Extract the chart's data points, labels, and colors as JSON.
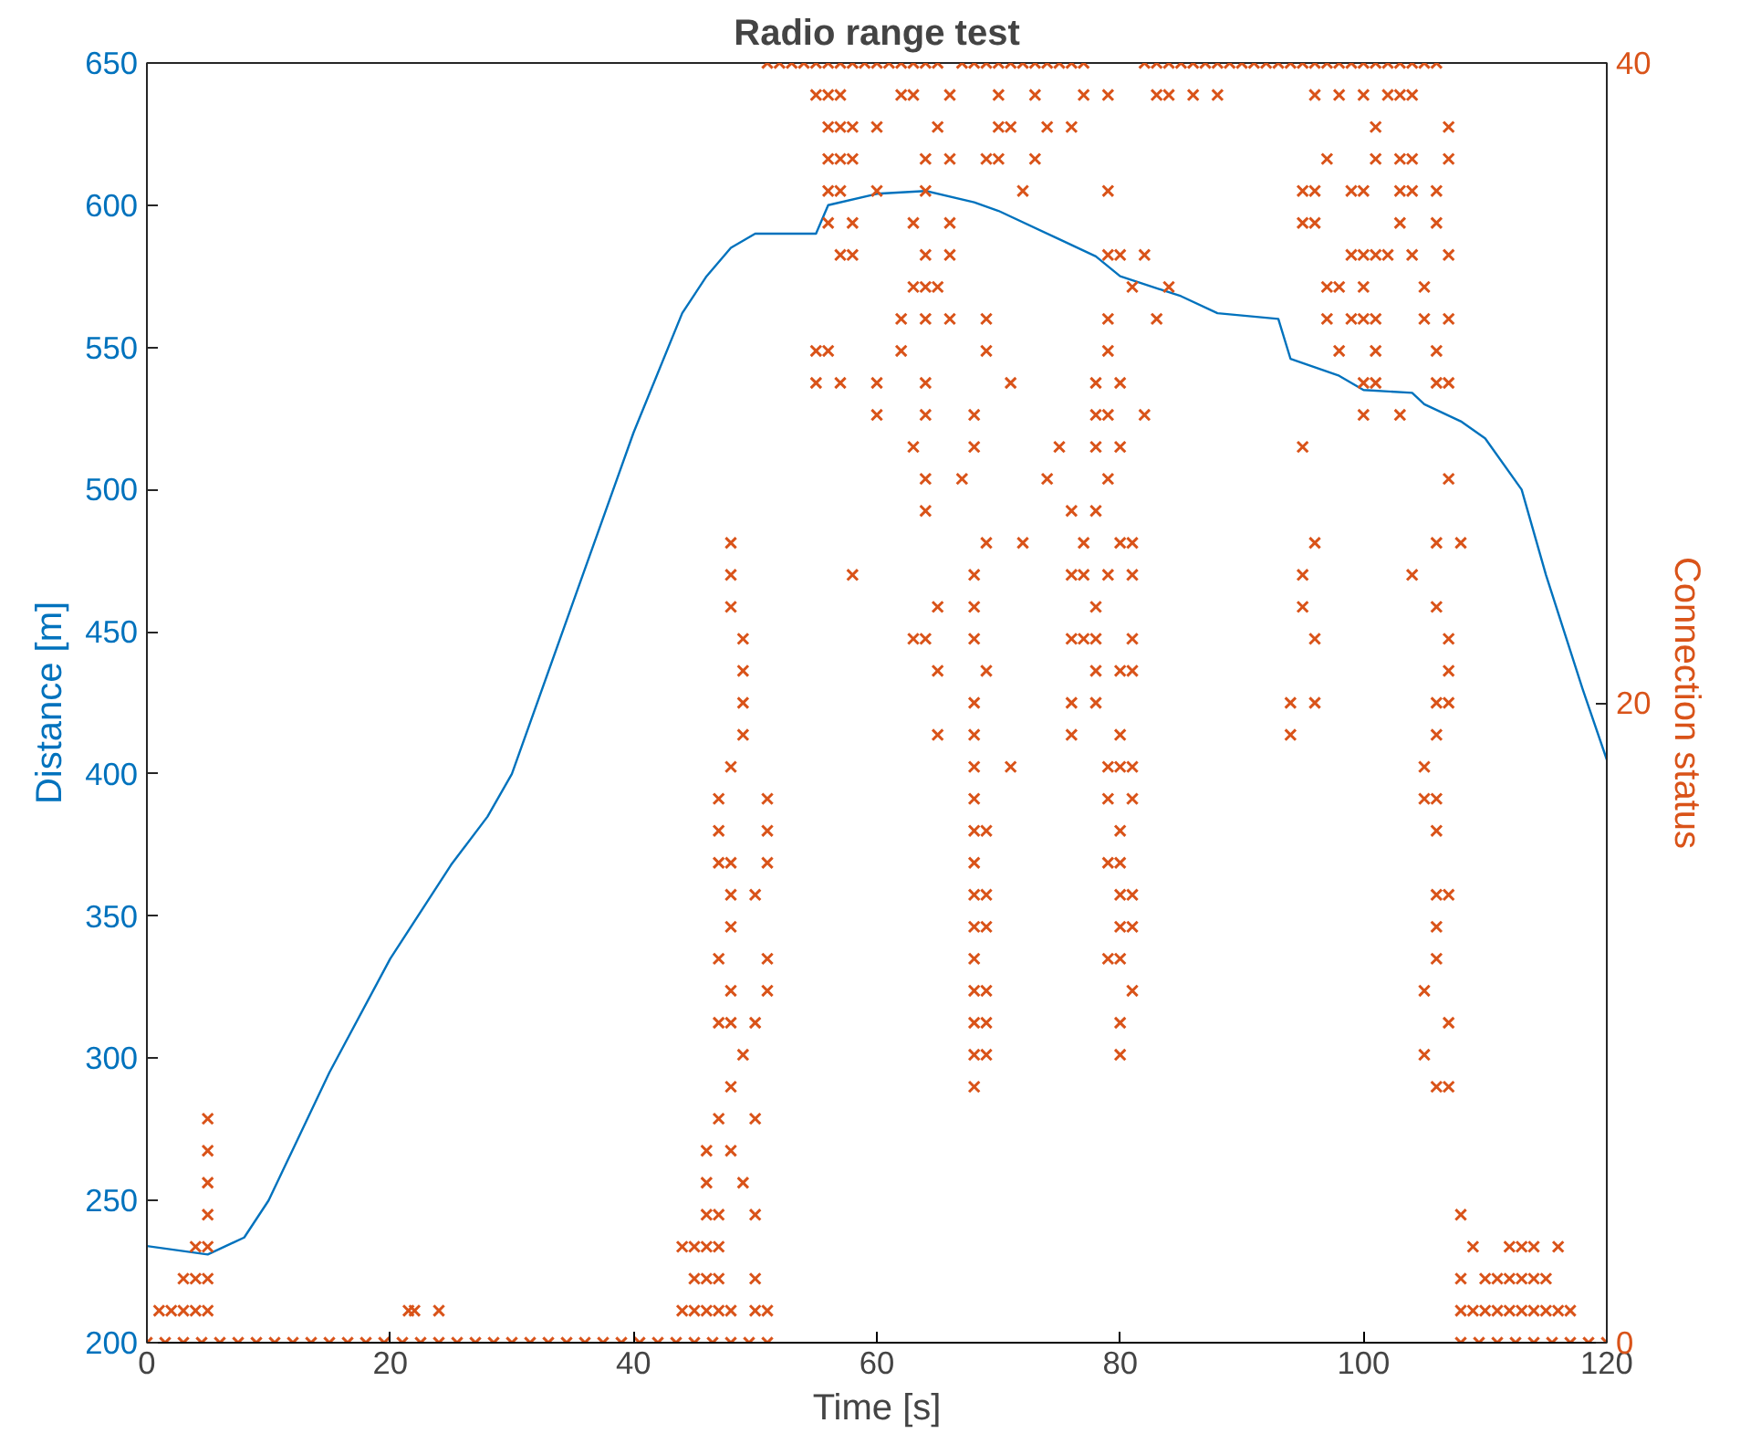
{
  "chart_data": {
    "type": "line",
    "title": "Radio range test",
    "xlabel": "Time [s]",
    "ylabel": "Distance [m]",
    "y2label": "Connection status",
    "xlim": [
      0,
      120
    ],
    "xticks": [
      0,
      20,
      40,
      60,
      80,
      100,
      120
    ],
    "ylim": [
      200,
      650
    ],
    "yticks": [
      200,
      250,
      300,
      350,
      400,
      450,
      500,
      550,
      600,
      650
    ],
    "y2lim": [
      0,
      40
    ],
    "y2ticks": [
      0,
      20,
      40
    ],
    "grid": false,
    "series": [
      {
        "color": "#0072bd",
        "line_style": "solid",
        "x": [
          0,
          5,
          8,
          10,
          12,
          15,
          20,
          25,
          28,
          30,
          35,
          40,
          44,
          46,
          48,
          50,
          55,
          56,
          60,
          64,
          68,
          70,
          75,
          78,
          80,
          85,
          88,
          93,
          94,
          98,
          100,
          104,
          105,
          108,
          110,
          113,
          115,
          118,
          120
        ],
        "values": [
          234,
          231,
          237,
          250,
          268,
          295,
          335,
          368,
          385,
          400,
          460,
          520,
          562,
          575,
          585,
          590,
          590,
          600,
          604,
          605,
          601,
          598,
          588,
          582,
          575,
          568,
          562,
          560,
          546,
          540,
          535,
          534,
          530,
          524,
          518,
          500,
          470,
          430,
          405
        ]
      },
      {
        "type": "scatter",
        "axis": "y2",
        "marker": "cross",
        "color": "#d95319",
        "x": [
          0,
          1.5,
          3,
          4.5,
          6,
          7.5,
          9,
          10.5,
          12,
          13.5,
          15,
          16.5,
          18,
          19.5,
          21,
          22.5,
          24,
          25.5,
          27,
          28.5,
          30,
          31.5,
          33,
          34.5,
          36,
          37.5,
          39,
          40.5,
          42,
          43.5,
          45,
          46.5,
          48,
          49.5,
          51,
          108,
          109.5,
          111,
          112.5,
          114,
          115.5,
          117,
          118.5,
          120
        ],
        "values": [
          0,
          0,
          0,
          0,
          0,
          0,
          0,
          0,
          0,
          0,
          0,
          0,
          0,
          0,
          0,
          0,
          0,
          0,
          0,
          0,
          0,
          0,
          0,
          0,
          0,
          0,
          0,
          0,
          0,
          0,
          0,
          0,
          0,
          0,
          0,
          0,
          0,
          0,
          0,
          0,
          0,
          0,
          0,
          0
        ]
      },
      {
        "type": "scatter",
        "axis": "y2",
        "marker": "cross",
        "color": "#d95319",
        "x": [
          1,
          2,
          3,
          4,
          5,
          21.5,
          22,
          24,
          44,
          45,
          46,
          47,
          48,
          50,
          51,
          108,
          109,
          110,
          111,
          112,
          113,
          114,
          115,
          116,
          117
        ],
        "values": [
          1,
          1,
          1,
          1,
          1,
          1,
          1,
          1,
          1,
          1,
          1,
          1,
          1,
          1,
          1,
          1,
          1,
          1,
          1,
          1,
          1,
          1,
          1,
          1,
          1
        ]
      },
      {
        "type": "scatter",
        "axis": "y2",
        "marker": "cross",
        "color": "#d95319",
        "x": [
          3,
          4,
          5,
          45,
          46,
          47,
          50,
          108,
          110,
          111,
          112,
          113,
          114,
          115
        ],
        "values": [
          2,
          2,
          2,
          2,
          2,
          2,
          2,
          2,
          2,
          2,
          2,
          2,
          2,
          2
        ]
      },
      {
        "type": "scatter",
        "axis": "y2",
        "marker": "cross",
        "color": "#d95319",
        "x": [
          4,
          5,
          44,
          45,
          46,
          47,
          109,
          112,
          113,
          114,
          116
        ],
        "values": [
          3,
          3,
          3,
          3,
          3,
          3,
          3,
          3,
          3,
          3,
          3
        ]
      },
      {
        "type": "scatter",
        "axis": "y2",
        "marker": "cross",
        "color": "#d95319",
        "x": [
          5,
          46,
          47,
          50,
          108,
          5,
          46,
          49,
          5,
          46,
          48,
          5,
          47,
          50
        ],
        "values": [
          4,
          4,
          4,
          4,
          4,
          5,
          5,
          5,
          6,
          6,
          6,
          7,
          7,
          7
        ]
      },
      {
        "type": "scatter",
        "axis": "y2",
        "marker": "cross",
        "color": "#d95319",
        "x": [
          48,
          68,
          106,
          107,
          49,
          68,
          69,
          80,
          105,
          47,
          48,
          50,
          68,
          69,
          80,
          107
        ],
        "values": [
          8,
          8,
          8,
          8,
          9,
          9,
          9,
          9,
          9,
          10,
          10,
          10,
          10,
          10,
          10,
          10
        ]
      },
      {
        "type": "scatter",
        "axis": "y2",
        "marker": "cross",
        "color": "#d95319",
        "x": [
          48,
          51,
          68,
          69,
          81,
          105,
          47,
          51,
          68,
          79,
          80,
          106,
          48,
          68,
          69,
          80,
          81,
          106
        ],
        "values": [
          11,
          11,
          11,
          11,
          11,
          11,
          12,
          12,
          12,
          12,
          12,
          12,
          13,
          13,
          13,
          13,
          13,
          13
        ]
      },
      {
        "type": "scatter",
        "axis": "y2",
        "marker": "cross",
        "color": "#d95319",
        "x": [
          48,
          50,
          68,
          69,
          80,
          81,
          106,
          107,
          47,
          48,
          51,
          68,
          79,
          80,
          47,
          51,
          68,
          69,
          80,
          106
        ],
        "values": [
          14,
          14,
          14,
          14,
          14,
          14,
          14,
          14,
          15,
          15,
          15,
          15,
          15,
          15,
          16,
          16,
          16,
          16,
          16,
          16
        ]
      },
      {
        "type": "scatter",
        "axis": "y2",
        "marker": "cross",
        "color": "#d95319",
        "x": [
          47,
          51,
          68,
          79,
          81,
          105,
          106,
          48,
          68,
          71,
          79,
          80,
          81,
          105,
          49,
          65,
          68,
          76,
          80,
          94,
          106
        ],
        "values": [
          17,
          17,
          17,
          17,
          17,
          17,
          17,
          18,
          18,
          18,
          18,
          18,
          18,
          18,
          19,
          19,
          19,
          19,
          19,
          19,
          19
        ]
      },
      {
        "type": "scatter",
        "axis": "y2",
        "marker": "cross",
        "color": "#d95319",
        "x": [
          49,
          68,
          76,
          78,
          94,
          96,
          106,
          107,
          49,
          65,
          69,
          78,
          80,
          81,
          107
        ],
        "values": [
          20,
          20,
          20,
          20,
          20,
          20,
          20,
          20,
          21,
          21,
          21,
          21,
          21,
          21,
          21
        ]
      },
      {
        "type": "scatter",
        "axis": "y2",
        "marker": "cross",
        "color": "#d95319",
        "x": [
          49,
          63,
          64,
          68,
          76,
          77,
          78,
          81,
          96,
          107,
          48,
          65,
          68,
          78,
          95,
          106
        ],
        "values": [
          22,
          22,
          22,
          22,
          22,
          22,
          22,
          22,
          22,
          22,
          23,
          23,
          23,
          23,
          23,
          23
        ]
      },
      {
        "type": "scatter",
        "axis": "y2",
        "marker": "cross",
        "color": "#d95319",
        "x": [
          48,
          58,
          68,
          76,
          77,
          79,
          81,
          95,
          104,
          48,
          69,
          72,
          77,
          80,
          81,
          96,
          106,
          108
        ],
        "values": [
          24,
          24,
          24,
          24,
          24,
          24,
          24,
          24,
          24,
          25,
          25,
          25,
          25,
          25,
          25,
          25,
          25,
          25
        ]
      },
      {
        "type": "scatter",
        "axis": "y2",
        "marker": "cross",
        "color": "#d95319",
        "x": [
          64,
          76,
          78,
          64,
          67,
          74,
          79,
          107,
          63,
          68,
          75,
          78,
          80,
          95
        ],
        "values": [
          26,
          26,
          26,
          27,
          27,
          27,
          27,
          27,
          28,
          28,
          28,
          28,
          28,
          28
        ]
      },
      {
        "type": "scatter",
        "axis": "y2",
        "marker": "cross",
        "color": "#d95319",
        "x": [
          60,
          64,
          68,
          78,
          79,
          82,
          100,
          103,
          55,
          57,
          60,
          64,
          71,
          78,
          80,
          100,
          101,
          106,
          107
        ],
        "values": [
          29,
          29,
          29,
          29,
          29,
          29,
          29,
          29,
          30,
          30,
          30,
          30,
          30,
          30,
          30,
          30,
          30,
          30,
          30
        ]
      },
      {
        "type": "scatter",
        "axis": "y2",
        "marker": "cross",
        "color": "#d95319",
        "x": [
          55,
          56,
          62,
          69,
          79,
          98,
          101,
          106,
          62,
          64,
          66,
          69,
          79,
          83,
          97,
          99,
          100,
          101,
          105,
          107
        ],
        "values": [
          31,
          31,
          31,
          31,
          31,
          31,
          31,
          31,
          32,
          32,
          32,
          32,
          32,
          32,
          32,
          32,
          32,
          32,
          32,
          32
        ]
      },
      {
        "type": "scatter",
        "axis": "y2",
        "marker": "cross",
        "color": "#d95319",
        "x": [
          63,
          64,
          65,
          81,
          84,
          97,
          98,
          100,
          105,
          57,
          58,
          64,
          66,
          79,
          80,
          82,
          99,
          100,
          101,
          102,
          104,
          107
        ],
        "values": [
          33,
          33,
          33,
          33,
          33,
          33,
          33,
          33,
          33,
          34,
          34,
          34,
          34,
          34,
          34,
          34,
          34,
          34,
          34,
          34,
          34,
          34
        ]
      },
      {
        "type": "scatter",
        "axis": "y2",
        "marker": "cross",
        "color": "#d95319",
        "x": [
          56,
          58,
          63,
          66,
          95,
          96,
          103,
          106,
          56,
          57,
          60,
          64,
          72,
          79,
          95,
          96,
          99,
          100,
          103,
          104,
          106
        ],
        "values": [
          35,
          35,
          35,
          35,
          35,
          35,
          35,
          35,
          36,
          36,
          36,
          36,
          36,
          36,
          36,
          36,
          36,
          36,
          36,
          36,
          36
        ]
      },
      {
        "type": "scatter",
        "axis": "y2",
        "marker": "cross",
        "color": "#d95319",
        "x": [
          56,
          57,
          58,
          64,
          66,
          69,
          70,
          73,
          97,
          101,
          103,
          104,
          107,
          56,
          57,
          58,
          60,
          65,
          70,
          71,
          74,
          76,
          101,
          107
        ],
        "values": [
          37,
          37,
          37,
          37,
          37,
          37,
          37,
          37,
          37,
          37,
          37,
          37,
          37,
          38,
          38,
          38,
          38,
          38,
          38,
          38,
          38,
          38,
          38,
          38
        ]
      },
      {
        "type": "scatter",
        "axis": "y2",
        "marker": "cross",
        "color": "#d95319",
        "x": [
          55,
          56,
          57,
          62,
          63,
          66,
          70,
          73,
          77,
          79,
          83,
          84,
          86,
          88,
          96,
          98,
          100,
          102,
          103,
          104
        ],
        "values": [
          39,
          39,
          39,
          39,
          39,
          39,
          39,
          39,
          39,
          39,
          39,
          39,
          39,
          39,
          39,
          39,
          39,
          39,
          39,
          39
        ]
      },
      {
        "type": "scatter",
        "axis": "y2",
        "marker": "cross",
        "color": "#d95319",
        "x": [
          51,
          52,
          53,
          54,
          55,
          56,
          57,
          58,
          59,
          60,
          61,
          62,
          63,
          64,
          65,
          67,
          68,
          69,
          70,
          71,
          72,
          73,
          74,
          75,
          76,
          77,
          82,
          83,
          84,
          85,
          86,
          87,
          88,
          89,
          90,
          91,
          92,
          93,
          94,
          95,
          96,
          97,
          98,
          99,
          100,
          101,
          102,
          103,
          104,
          105,
          106
        ],
        "values": [
          40,
          40,
          40,
          40,
          40,
          40,
          40,
          40,
          40,
          40,
          40,
          40,
          40,
          40,
          40,
          40,
          40,
          40,
          40,
          40,
          40,
          40,
          40,
          40,
          40,
          40,
          40,
          40,
          40,
          40,
          40,
          40,
          40,
          40,
          40,
          40,
          40,
          40,
          40,
          40,
          40,
          40,
          40,
          40,
          40,
          40,
          40,
          40,
          40,
          40,
          40
        ]
      }
    ]
  }
}
